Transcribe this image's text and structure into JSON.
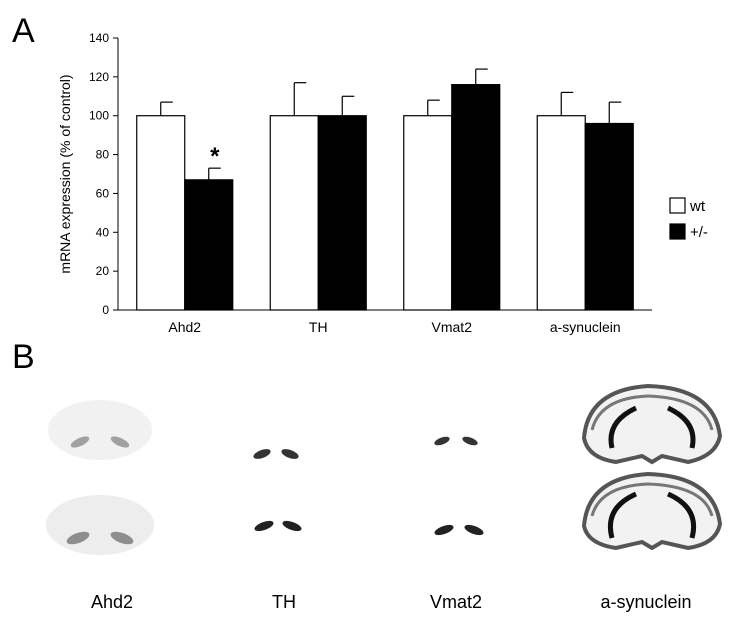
{
  "panels": {
    "a": "A",
    "b": "B"
  },
  "chart_data": {
    "type": "bar",
    "categories": [
      "Ahd2",
      "TH",
      "Vmat2",
      "a-synuclein"
    ],
    "series": [
      {
        "name": "wt",
        "color": "#ffffff",
        "values": [
          100,
          100,
          100,
          100
        ],
        "errors": [
          7,
          17,
          8,
          12
        ]
      },
      {
        "name": "+/-",
        "color": "#000000",
        "values": [
          67,
          100,
          116,
          96
        ],
        "errors": [
          6,
          10,
          8,
          11
        ]
      }
    ],
    "ylabel": "mRNA expression (% of control)",
    "ylim": [
      0,
      140
    ],
    "yticks": [
      0,
      20,
      40,
      60,
      80,
      100,
      120,
      140
    ],
    "annotations": [
      {
        "text": "*",
        "category": "Ahd2",
        "series": "+/-"
      }
    ],
    "legend_position": "right",
    "grid": false
  },
  "brain_slices": {
    "labels": [
      "Ahd2",
      "TH",
      "Vmat2",
      "a-synuclein"
    ]
  }
}
